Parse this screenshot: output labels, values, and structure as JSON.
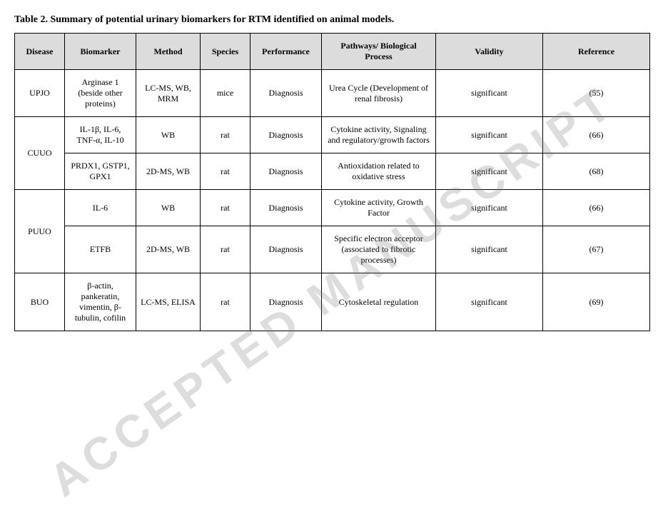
{
  "caption": "Table 2. Summary of potential urinary biomarkers for RTM identified on animal models.",
  "watermark": "ACCEPTED MANUSCRIPT",
  "headers": {
    "disease": "Disease",
    "biomarker": "Biomarker",
    "method": "Method",
    "species": "Species",
    "performance": "Performance",
    "pathways": "Pathways/ Biological Process",
    "validity": "Validity",
    "reference": "Reference"
  },
  "rows": [
    {
      "disease": "UPJO",
      "biomarker": "Arginase 1 (beside other proteins)",
      "method": "LC-MS, WB, MRM",
      "species": "mice",
      "performance": "Diagnosis",
      "pathways": "Urea Cycle (Development of renal fibrosis)",
      "validity": "significant",
      "reference": "(55)"
    },
    {
      "disease": "CUUO",
      "biomarker": "IL-1β, IL-6, TNF-α, IL-10",
      "method": "WB",
      "species": "rat",
      "performance": "Diagnosis",
      "pathways": "Cytokine activity, Signaling and regulatory/growth factors",
      "validity": "significant",
      "reference": "(66)"
    },
    {
      "biomarker": "PRDX1, GSTP1, GPX1",
      "method": "2D-MS, WB",
      "species": "rat",
      "performance": "Diagnosis",
      "pathways": "Antioxidation related to oxidative stress",
      "validity": "significant",
      "reference": "(68)"
    },
    {
      "disease": "PUUO",
      "biomarker": "IL-6",
      "method": "WB",
      "species": "rat",
      "performance": "Diagnosis",
      "pathways": "Cytokine activity, Growth Factor",
      "validity": "significant",
      "reference": "(66)"
    },
    {
      "biomarker": "ETFB",
      "method": "2D-MS, WB",
      "species": "rat",
      "performance": "Diagnosis",
      "pathways": "Specific electron acceptor (associated to fibrotic processes)",
      "validity": "significant",
      "reference": "(67)"
    },
    {
      "disease": "BUO",
      "biomarker": "β-actin, pankeratin, vimentin, β-tubulin, cofilin",
      "method": "LC-MS, ELISA",
      "species": "rat",
      "performance": "Diagnosis",
      "pathways": "Cytoskeletal regulation",
      "validity": "significant",
      "reference": "(69)"
    }
  ]
}
